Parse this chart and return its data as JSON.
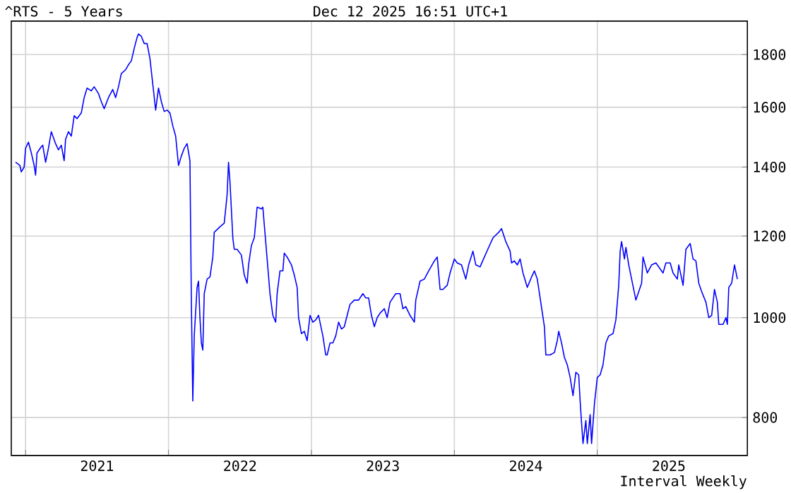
{
  "chart_data": {
    "type": "line",
    "title": "^RTS - 5 Years",
    "subtitle": "Dec 12 2025 16:51 UTC+1",
    "annotations": [
      "Interval Weekly"
    ],
    "color": "#0000ff",
    "log": "y",
    "grid": true,
    "xlim": [
      2020.9,
      2026.05
    ],
    "ylim": [
      735,
      1940
    ],
    "xticks": [
      {
        "value": 2021,
        "label": null
      },
      {
        "value": 2021.5,
        "label": "2021"
      },
      {
        "value": 2022,
        "label": null
      },
      {
        "value": 2022.5,
        "label": "2022"
      },
      {
        "value": 2023,
        "label": null
      },
      {
        "value": 2023.5,
        "label": "2023"
      },
      {
        "value": 2024,
        "label": null
      },
      {
        "value": 2024.5,
        "label": "2024"
      },
      {
        "value": 2025,
        "label": null
      },
      {
        "value": 2025.5,
        "label": "2025"
      }
    ],
    "yticks": [
      800,
      1000,
      1200,
      1400,
      1600,
      1800
    ],
    "x": [
      2020.93,
      2020.96,
      2020.97,
      2020.99,
      2021.0,
      2021.02,
      2021.04,
      2021.06,
      2021.07,
      2021.08,
      2021.11,
      2021.12,
      2021.14,
      2021.16,
      2021.18,
      2021.21,
      2021.23,
      2021.25,
      2021.27,
      2021.28,
      2021.3,
      2021.32,
      2021.34,
      2021.36,
      2021.39,
      2021.41,
      2021.43,
      2021.46,
      2021.48,
      2021.51,
      2021.53,
      2021.55,
      2021.58,
      2021.61,
      2021.63,
      2021.65,
      2021.67,
      2021.7,
      2021.72,
      2021.74,
      2021.76,
      2021.78,
      2021.79,
      2021.81,
      2021.83,
      2021.85,
      2021.87,
      2021.89,
      2021.91,
      2021.93,
      2021.95,
      2021.97,
      2021.99,
      2022.01,
      2022.03,
      2022.05,
      2022.07,
      2022.09,
      2022.11,
      2022.13,
      2022.15,
      2022.16,
      2022.17,
      2022.18,
      2022.2,
      2022.21,
      2022.22,
      2022.23,
      2022.24,
      2022.25,
      2022.27,
      2022.29,
      2022.31,
      2022.32,
      2022.36,
      2022.39,
      2022.41,
      2022.42,
      2022.43,
      2022.45,
      2022.46,
      2022.48,
      2022.51,
      2022.53,
      2022.55,
      2022.56,
      2022.58,
      2022.6,
      2022.62,
      2022.65,
      2022.66,
      2022.68,
      2022.69,
      2022.71,
      2022.73,
      2022.75,
      2022.76,
      2022.78,
      2022.8,
      2022.81,
      2022.83,
      2022.86,
      2022.88,
      2022.9,
      2022.91,
      2022.93,
      2022.95,
      2022.97,
      2022.99,
      2023.01,
      2023.03,
      2023.05,
      2023.08,
      2023.1,
      2023.11,
      2023.13,
      2023.15,
      2023.17,
      2023.19,
      2023.21,
      2023.23,
      2023.25,
      2023.27,
      2023.3,
      2023.33,
      2023.36,
      2023.38,
      2023.4,
      2023.42,
      2023.44,
      2023.46,
      2023.48,
      2023.51,
      2023.53,
      2023.55,
      2023.59,
      2023.62,
      2023.64,
      2023.66,
      2023.69,
      2023.72,
      2023.73,
      2023.76,
      2023.79,
      2023.82,
      2023.86,
      2023.88,
      2023.9,
      2023.92,
      2023.95,
      2023.97,
      2024.0,
      2024.02,
      2024.05,
      2024.08,
      2024.1,
      2024.13,
      2024.15,
      2024.18,
      2024.21,
      2024.24,
      2024.27,
      2024.31,
      2024.33,
      2024.36,
      2024.39,
      2024.4,
      2024.42,
      2024.44,
      2024.46,
      2024.48,
      2024.51,
      2024.54,
      2024.56,
      2024.58,
      2024.6,
      2024.63,
      2024.64,
      2024.67,
      2024.7,
      2024.72,
      2024.73,
      2024.75,
      2024.77,
      2024.79,
      2024.81,
      2024.83,
      2024.85,
      2024.87,
      2024.88,
      2024.89,
      2024.9,
      2024.92,
      2024.93,
      2024.95,
      2024.96,
      2024.98,
      2025.0,
      2025.02,
      2025.04,
      2025.06,
      2025.08,
      2025.11,
      2025.13,
      2025.15,
      2025.16,
      2025.17,
      2025.19,
      2025.2,
      2025.22,
      2025.27,
      2025.31,
      2025.32,
      2025.35,
      2025.38,
      2025.41,
      2025.44,
      2025.46,
      2025.48,
      2025.51,
      2025.53,
      2025.56,
      2025.57,
      2025.6,
      2025.62,
      2025.65,
      2025.67,
      2025.69,
      2025.71,
      2025.73,
      2025.76,
      2025.78,
      2025.8,
      2025.82,
      2025.84,
      2025.85,
      2025.88,
      2025.9,
      2025.91,
      2025.92,
      2025.94,
      2025.96,
      2025.98
    ],
    "values": [
      1415,
      1405,
      1385,
      1400,
      1460,
      1480,
      1445,
      1405,
      1375,
      1445,
      1465,
      1470,
      1415,
      1460,
      1515,
      1475,
      1455,
      1470,
      1420,
      1490,
      1515,
      1500,
      1570,
      1560,
      1580,
      1635,
      1670,
      1660,
      1675,
      1650,
      1620,
      1595,
      1635,
      1665,
      1635,
      1675,
      1725,
      1740,
      1760,
      1775,
      1825,
      1870,
      1885,
      1875,
      1845,
      1845,
      1785,
      1685,
      1590,
      1670,
      1620,
      1585,
      1590,
      1580,
      1535,
      1500,
      1405,
      1435,
      1460,
      1475,
      1420,
      1035,
      830,
      960,
      1070,
      1085,
      1000,
      945,
      930,
      1055,
      1090,
      1095,
      1145,
      1210,
      1225,
      1235,
      1315,
      1415,
      1355,
      1195,
      1165,
      1165,
      1150,
      1100,
      1080,
      1125,
      1175,
      1195,
      1280,
      1275,
      1280,
      1185,
      1140,
      1055,
      1005,
      990,
      1055,
      1110,
      1110,
      1155,
      1145,
      1125,
      1100,
      1070,
      1000,
      965,
      970,
      950,
      1005,
      990,
      995,
      1005,
      960,
      920,
      920,
      945,
      945,
      960,
      990,
      975,
      980,
      1005,
      1030,
      1040,
      1040,
      1055,
      1045,
      1045,
      1005,
      980,
      1000,
      1010,
      1020,
      1000,
      1035,
      1055,
      1055,
      1020,
      1025,
      1005,
      990,
      1040,
      1085,
      1090,
      1110,
      1135,
      1145,
      1065,
      1065,
      1075,
      1105,
      1140,
      1130,
      1125,
      1090,
      1125,
      1160,
      1125,
      1120,
      1145,
      1170,
      1195,
      1210,
      1220,
      1185,
      1160,
      1130,
      1135,
      1125,
      1140,
      1105,
      1070,
      1095,
      1110,
      1090,
      1045,
      980,
      920,
      920,
      925,
      950,
      970,
      945,
      915,
      900,
      875,
      840,
      885,
      880,
      830,
      790,
      755,
      795,
      755,
      805,
      755,
      825,
      875,
      880,
      900,
      945,
      960,
      965,
      995,
      1075,
      1160,
      1185,
      1140,
      1170,
      1125,
      1040,
      1080,
      1145,
      1105,
      1125,
      1130,
      1115,
      1105,
      1130,
      1130,
      1105,
      1090,
      1125,
      1075,
      1165,
      1180,
      1140,
      1135,
      1080,
      1060,
      1035,
      1000,
      1005,
      1065,
      1035,
      985,
      985,
      1000,
      985,
      1070,
      1080,
      1125,
      1090
    ]
  }
}
